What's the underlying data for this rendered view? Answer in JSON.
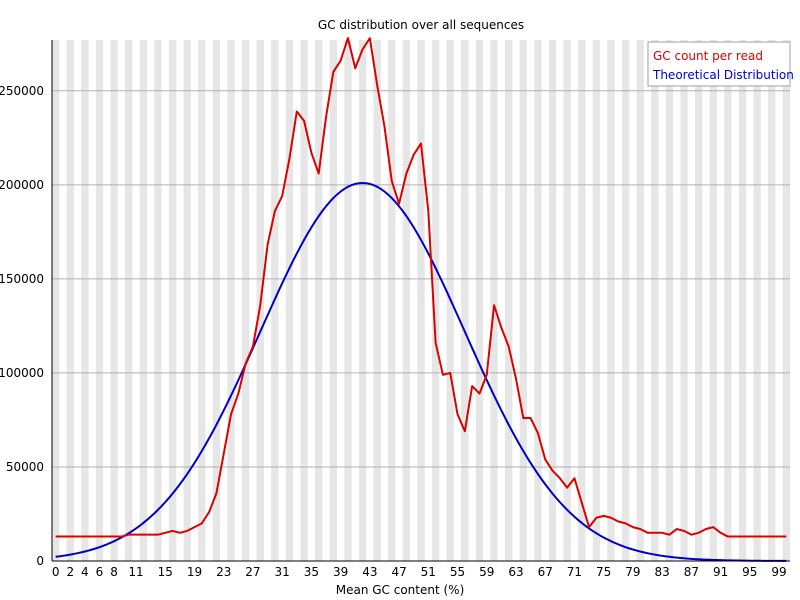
{
  "chart_data": {
    "type": "line",
    "title": "GC distribution over all sequences",
    "xlabel": "Mean GC content (%)",
    "ylabel": "",
    "xlim": [
      0,
      100
    ],
    "ylim": [
      0,
      277000
    ],
    "x_ticks": [
      "0",
      "2",
      "4",
      "6",
      "8",
      "11",
      "15",
      "19",
      "23",
      "27",
      "31",
      "35",
      "39",
      "43",
      "47",
      "51",
      "55",
      "59",
      "63",
      "67",
      "71",
      "75",
      "79",
      "83",
      "87",
      "91",
      "95",
      "99"
    ],
    "y_ticks": [
      0,
      50000,
      100000,
      150000,
      200000,
      250000
    ],
    "grid": true,
    "legend_position": "top-right",
    "series": [
      {
        "name": "GC count per read",
        "color": "#dd0000",
        "x": [
          0,
          1,
          2,
          3,
          4,
          5,
          6,
          7,
          8,
          9,
          10,
          11,
          12,
          13,
          14,
          15,
          16,
          17,
          18,
          19,
          20,
          21,
          22,
          23,
          24,
          25,
          26,
          27,
          28,
          29,
          30,
          31,
          32,
          33,
          34,
          35,
          36,
          37,
          38,
          39,
          40,
          41,
          42,
          43,
          44,
          45,
          46,
          47,
          48,
          49,
          50,
          51,
          52,
          53,
          54,
          55,
          56,
          57,
          58,
          59,
          60,
          61,
          62,
          63,
          64,
          65,
          66,
          67,
          68,
          69,
          70,
          71,
          72,
          73,
          74,
          75,
          76,
          77,
          78,
          79,
          80,
          81,
          82,
          83,
          84,
          85,
          86,
          87,
          88,
          89,
          90,
          91,
          92,
          93,
          94,
          95,
          96,
          97,
          98,
          99,
          100
        ],
        "values": [
          13000,
          13000,
          13000,
          13000,
          13000,
          13000,
          13000,
          13000,
          13000,
          13000,
          14000,
          14000,
          14000,
          14000,
          14000,
          15000,
          16000,
          15000,
          16000,
          18000,
          20000,
          26000,
          36000,
          57000,
          78000,
          89000,
          105000,
          114000,
          136000,
          168000,
          186000,
          194000,
          214000,
          239000,
          234000,
          217000,
          206000,
          236000,
          260000,
          266000,
          278000,
          262000,
          272000,
          278000,
          253000,
          231000,
          202000,
          190000,
          206000,
          216000,
          222000,
          186000,
          116000,
          99000,
          100000,
          78000,
          69000,
          93000,
          89000,
          99000,
          136000,
          124000,
          114000,
          97000,
          76000,
          76000,
          68000,
          54000,
          48000,
          44000,
          39000,
          44000,
          31000,
          18000,
          23000,
          24000,
          23000,
          21000,
          20000,
          18000,
          17000,
          15000,
          15000,
          15000,
          14000,
          17000,
          16000,
          14000,
          15000,
          17000,
          18000,
          15000,
          13000,
          13000,
          13000,
          13000,
          13000,
          13000,
          13000,
          13000,
          13000
        ]
      },
      {
        "name": "Theoretical Distribution",
        "color": "#0000cc",
        "mean": 42,
        "sd": 14,
        "peak": 201000,
        "step": 0.5
      }
    ]
  }
}
